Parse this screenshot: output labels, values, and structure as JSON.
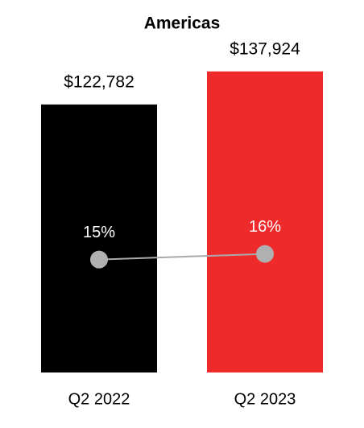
{
  "chart_data": {
    "type": "bar",
    "title": "Americas",
    "categories": [
      "Q2 2022",
      "Q2 2023"
    ],
    "series": [
      {
        "type": "bar",
        "colors": [
          "#000000",
          "#ee2a2a"
        ],
        "values": [
          122782,
          137924
        ],
        "value_labels": [
          "$122,782",
          "$137,924"
        ]
      },
      {
        "type": "line",
        "axis": "y2",
        "color": "#aaaaaa",
        "marker_color": "#b0b0b0",
        "values": [
          15,
          16
        ],
        "value_labels": [
          "15%",
          "16%"
        ]
      }
    ],
    "ylim": [
      0,
      150000
    ],
    "y2lim": [
      -5,
      53
    ]
  }
}
